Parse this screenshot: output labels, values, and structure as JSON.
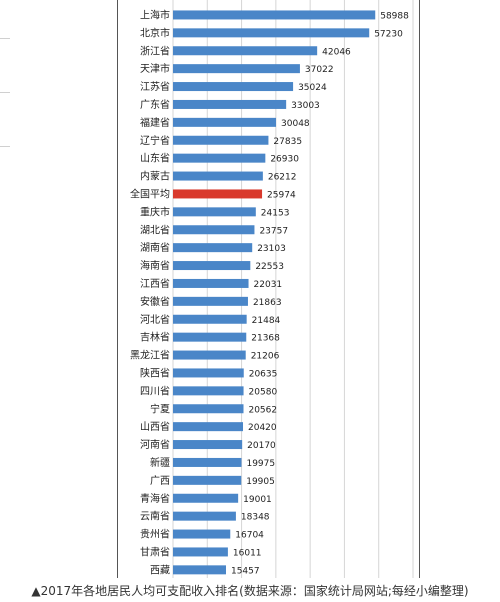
{
  "chart_data": {
    "type": "bar",
    "orientation": "horizontal",
    "categories": [
      "上海市",
      "北京市",
      "浙江省",
      "天津市",
      "江苏省",
      "广东省",
      "福建省",
      "辽宁省",
      "山东省",
      "内蒙古",
      "全国平均",
      "重庆市",
      "湖北省",
      "湖南省",
      "海南省",
      "江西省",
      "安徽省",
      "河北省",
      "吉林省",
      "黑龙江省",
      "陕西省",
      "四川省",
      "宁夏",
      "山西省",
      "河南省",
      "新疆",
      "广西",
      "青海省",
      "云南省",
      "贵州省",
      "甘肃省",
      "西藏"
    ],
    "values": [
      58988,
      57230,
      42046,
      37022,
      35024,
      33003,
      30048,
      27835,
      26930,
      26212,
      25974,
      24153,
      23757,
      23103,
      22553,
      22031,
      21863,
      21484,
      21368,
      21206,
      20635,
      20580,
      20562,
      20420,
      20170,
      19975,
      19905,
      19001,
      18348,
      16704,
      16011,
      15457
    ],
    "value_labels": [
      "58988",
      "57230",
      "42046",
      "37022",
      "35024",
      "33003",
      "30048",
      "27835",
      "26930",
      "26212",
      "25974",
      "24153",
      "23757",
      "23103",
      "22553",
      "22031",
      "21863",
      "21484",
      "21368",
      "21206",
      "20635",
      "20580",
      "20562",
      "20420",
      "20170",
      "19975",
      "19905",
      "19001",
      "18348",
      "16704",
      "16011",
      "15457"
    ],
    "xlim": [
      0,
      70000
    ],
    "highlight_category": "全国平均",
    "colors": {
      "bar": "#4a86c8",
      "highlight": "#d9392c",
      "grid": "#d6d6d6"
    },
    "grid": true,
    "caption": "▲2017年各地居民人均可支配收入排名(数据来源：国家统计局网站;每经小编整理)"
  }
}
